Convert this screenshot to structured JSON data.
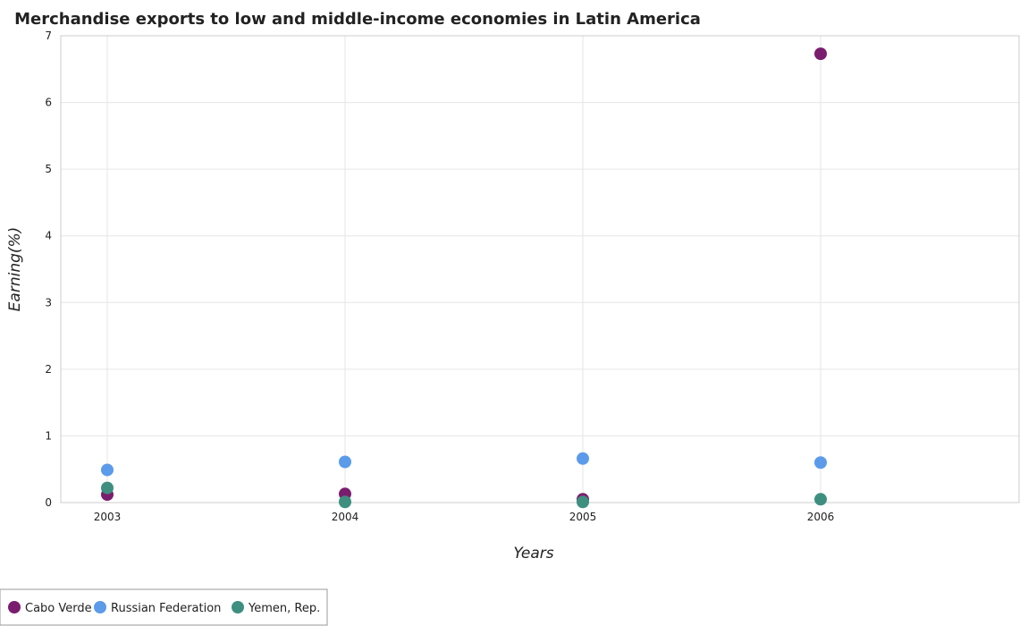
{
  "chart_data": {
    "type": "scatter",
    "title": "Merchandise exports to low and middle-income economies in Latin America",
    "xlabel": "Years",
    "ylabel": "Earning(%)",
    "categories": [
      "2003",
      "2004",
      "2005",
      "2006"
    ],
    "ylim": [
      0,
      7
    ],
    "yticks": [
      "0",
      "1",
      "2",
      "3",
      "4",
      "5",
      "6",
      "7"
    ],
    "grid": true,
    "legend_position": "bottom-left",
    "series": [
      {
        "name": "Cabo Verde",
        "color": "#7b1d6f",
        "values": [
          0.12,
          0.13,
          0.05,
          6.73
        ]
      },
      {
        "name": "Russian Federation",
        "color": "#5b9bea",
        "values": [
          0.49,
          0.61,
          0.66,
          0.6
        ]
      },
      {
        "name": "Yemen, Rep.",
        "color": "#3e8f7f",
        "values": [
          0.22,
          0.01,
          0.01,
          0.05
        ]
      }
    ]
  }
}
